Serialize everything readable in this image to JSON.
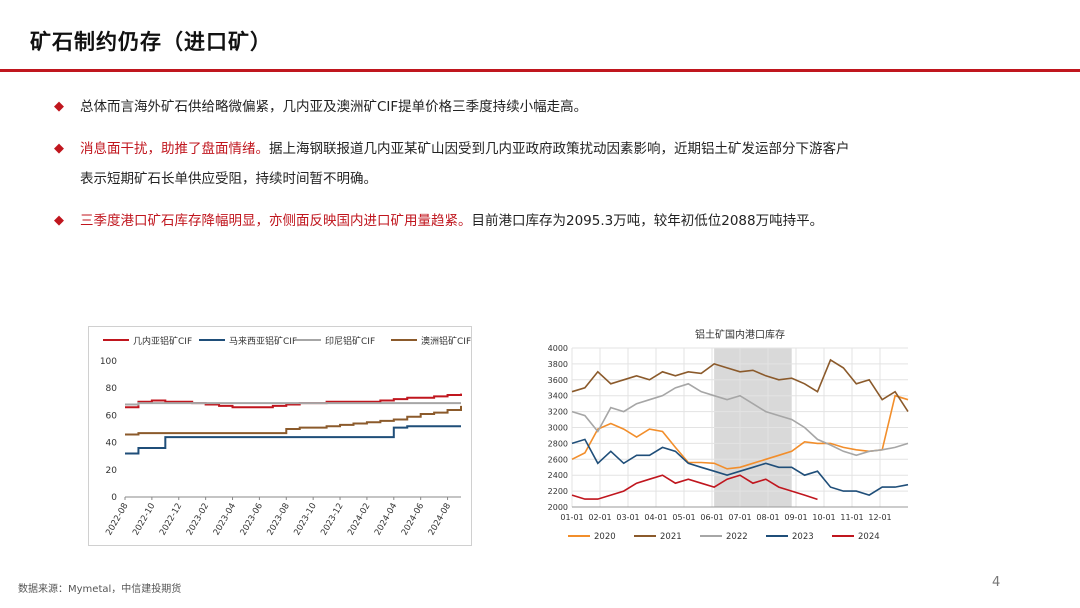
{
  "header": {
    "title": "矿石制约仍存（进口矿）"
  },
  "bullets": [
    {
      "plain": "总体而言海外矿石供给略微偏紧，几内亚及澳洲矿CIF提单价格三季度持续小幅走高。"
    },
    {
      "red": "消息面干扰，助推了盘面情绪。",
      "plain": "据上海钢联报道几内亚某矿山因受到几内亚政府政策扰动因素影响，近期铝土矿发运部分下游客户",
      "cont": "表示短期矿石长单供应受阻，持续时间暂不明确。"
    },
    {
      "red": "三季度港口矿石库存降幅明显，亦侧面反映国内进口矿用量趋紧。",
      "plain": "目前港口库存为2095.3万吨，较年初低位2088万吨持平。"
    }
  ],
  "footer": {
    "source": "数据来源：Mymetal，中信建投期货",
    "page": "4"
  },
  "chart_data": [
    {
      "type": "line",
      "title": "",
      "legend_position": "top",
      "grid": false,
      "x_ticks": [
        "2022-08",
        "2022-10",
        "2022-12",
        "2023-02",
        "2023-04",
        "2023-06",
        "2023-08",
        "2023-10",
        "2023-12",
        "2024-02",
        "2024-04",
        "2024-06",
        "2024-08"
      ],
      "x": [
        "2022-08",
        "2022-09",
        "2022-10",
        "2022-11",
        "2022-12",
        "2023-01",
        "2023-02",
        "2023-03",
        "2023-04",
        "2023-05",
        "2023-06",
        "2023-07",
        "2023-08",
        "2023-09",
        "2023-10",
        "2023-11",
        "2023-12",
        "2024-01",
        "2024-02",
        "2024-03",
        "2024-04",
        "2024-05",
        "2024-06",
        "2024-07",
        "2024-08",
        "2024-09"
      ],
      "ylim": [
        0,
        100
      ],
      "y_ticks": [
        0,
        20,
        40,
        60,
        80,
        100
      ],
      "series": [
        {
          "name": "几内亚铝矿CIF",
          "color": "#c0161e",
          "values": [
            66,
            70,
            71,
            70,
            70,
            69,
            68,
            67,
            66,
            66,
            66,
            67,
            68,
            69,
            69,
            70,
            70,
            70,
            70,
            71,
            72,
            73,
            73,
            74,
            75,
            76
          ]
        },
        {
          "name": "马来西亚铝矿CIF",
          "color": "#1f4e79",
          "values": [
            32,
            36,
            36,
            44,
            44,
            44,
            44,
            44,
            44,
            44,
            44,
            44,
            44,
            44,
            44,
            44,
            44,
            44,
            44,
            44,
            51,
            52,
            52,
            52,
            52,
            52
          ]
        },
        {
          "name": "印尼铝矿CIF",
          "color": "#a6a6a6",
          "values": [
            68,
            69,
            69,
            69,
            69,
            69,
            69,
            69,
            69,
            69,
            69,
            69,
            69,
            69,
            69,
            69,
            69,
            69,
            69,
            69,
            69,
            69,
            69,
            69,
            69,
            69
          ]
        },
        {
          "name": "澳洲铝矿CIF",
          "color": "#8b5a2b",
          "values": [
            46,
            47,
            47,
            47,
            47,
            47,
            47,
            47,
            47,
            47,
            47,
            47,
            50,
            51,
            51,
            52,
            53,
            54,
            55,
            56,
            57,
            59,
            61,
            62,
            64,
            67
          ]
        }
      ]
    },
    {
      "type": "line",
      "title": "铝土矿国内港口库存",
      "legend_position": "bottom",
      "grid": true,
      "x_ticks": [
        "01-01",
        "02-01",
        "03-01",
        "04-01",
        "05-01",
        "06-01",
        "07-01",
        "08-01",
        "09-01",
        "10-01",
        "11-01",
        "12-01"
      ],
      "ylim": [
        2000,
        4000
      ],
      "y_ticks": [
        2000,
        2200,
        2400,
        2600,
        2800,
        3000,
        3200,
        3400,
        3600,
        3800,
        4000
      ],
      "highlight_range": [
        5.5,
        8.5
      ],
      "series": [
        {
          "name": "2020",
          "color": "#f28e2b",
          "x": [
            0,
            0.5,
            1,
            1.5,
            2,
            2.5,
            3,
            3.5,
            4,
            4.5,
            5,
            5.5,
            6,
            6.5,
            7,
            7.5,
            8,
            8.5,
            9,
            9.5,
            10,
            10.5,
            11,
            11.5,
            12,
            12.5,
            13
          ],
          "values": [
            2600,
            2680,
            2980,
            3050,
            2980,
            2880,
            2980,
            2950,
            2750,
            2560,
            2560,
            2550,
            2480,
            2500,
            2550,
            2600,
            2650,
            2700,
            2820,
            2800,
            2800,
            2750,
            2720,
            2700,
            2720,
            3400,
            3350
          ]
        },
        {
          "name": "2021",
          "color": "#8b5a2b",
          "x": [
            0,
            0.5,
            1,
            1.5,
            2,
            2.5,
            3,
            3.5,
            4,
            4.5,
            5,
            5.5,
            6,
            6.5,
            7,
            7.5,
            8,
            8.5,
            9,
            9.5,
            10,
            10.5,
            11,
            11.5,
            12,
            12.5,
            13
          ],
          "values": [
            3450,
            3500,
            3700,
            3550,
            3600,
            3650,
            3600,
            3700,
            3650,
            3700,
            3680,
            3800,
            3750,
            3700,
            3720,
            3650,
            3600,
            3620,
            3550,
            3450,
            3850,
            3750,
            3550,
            3600,
            3350,
            3450,
            3200
          ]
        },
        {
          "name": "2022",
          "color": "#a6a6a6",
          "x": [
            0,
            0.5,
            1,
            1.5,
            2,
            2.5,
            3,
            3.5,
            4,
            4.5,
            5,
            5.5,
            6,
            6.5,
            7,
            7.5,
            8,
            8.5,
            9,
            9.5,
            10,
            10.5,
            11,
            11.5,
            12,
            12.5,
            13
          ],
          "values": [
            3200,
            3150,
            2950,
            3250,
            3200,
            3300,
            3350,
            3400,
            3500,
            3550,
            3450,
            3400,
            3350,
            3400,
            3300,
            3200,
            3150,
            3100,
            3000,
            2850,
            2780,
            2700,
            2650,
            2700,
            2720,
            2750,
            2800
          ]
        },
        {
          "name": "2023",
          "color": "#1f4e79",
          "x": [
            0,
            0.5,
            1,
            1.5,
            2,
            2.5,
            3,
            3.5,
            4,
            4.5,
            5,
            5.5,
            6,
            6.5,
            7,
            7.5,
            8,
            8.5,
            9,
            9.5,
            10,
            10.5,
            11,
            11.5,
            12,
            12.5,
            13
          ],
          "values": [
            2800,
            2850,
            2550,
            2700,
            2550,
            2650,
            2650,
            2750,
            2700,
            2550,
            2500,
            2450,
            2400,
            2450,
            2500,
            2550,
            2500,
            2500,
            2400,
            2450,
            2250,
            2200,
            2200,
            2150,
            2250,
            2250,
            2280
          ]
        },
        {
          "name": "2024",
          "color": "#c0161e",
          "x": [
            0,
            0.5,
            1,
            1.5,
            2,
            2.5,
            3,
            3.5,
            4,
            4.5,
            5,
            5.5,
            6,
            6.5,
            7,
            7.5,
            8,
            8.5,
            9,
            9.5
          ],
          "values": [
            2150,
            2100,
            2100,
            2150,
            2200,
            2300,
            2350,
            2400,
            2300,
            2350,
            2300,
            2250,
            2350,
            2400,
            2300,
            2350,
            2250,
            2200,
            2150,
            2095
          ]
        }
      ]
    }
  ]
}
